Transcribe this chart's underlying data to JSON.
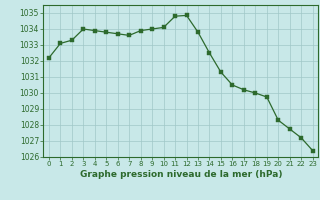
{
  "x": [
    0,
    1,
    2,
    3,
    4,
    5,
    6,
    7,
    8,
    9,
    10,
    11,
    12,
    13,
    14,
    15,
    16,
    17,
    18,
    19,
    20,
    21,
    22,
    23
  ],
  "y": [
    1032.2,
    1033.1,
    1033.3,
    1034.0,
    1033.9,
    1033.8,
    1033.7,
    1033.6,
    1033.9,
    1034.0,
    1034.1,
    1034.8,
    1034.85,
    1033.8,
    1032.5,
    1031.3,
    1030.5,
    1030.2,
    1030.0,
    1029.75,
    1028.3,
    1027.75,
    1027.2,
    1026.4
  ],
  "line_color": "#2d6a2d",
  "marker_color": "#2d6a2d",
  "bg_color": "#c8e8e8",
  "grid_color": "#a0c8c8",
  "tick_label_color": "#2d6a2d",
  "xlabel": "Graphe pression niveau de la mer (hPa)",
  "xlabel_color": "#2d6a2d",
  "ylim": [
    1026,
    1035.5
  ],
  "xlim": [
    -0.5,
    23.5
  ],
  "yticks": [
    1026,
    1027,
    1028,
    1029,
    1030,
    1031,
    1032,
    1033,
    1034,
    1035
  ],
  "xticks": [
    0,
    1,
    2,
    3,
    4,
    5,
    6,
    7,
    8,
    9,
    10,
    11,
    12,
    13,
    14,
    15,
    16,
    17,
    18,
    19,
    20,
    21,
    22,
    23
  ],
  "spine_color": "#2d6a2d"
}
